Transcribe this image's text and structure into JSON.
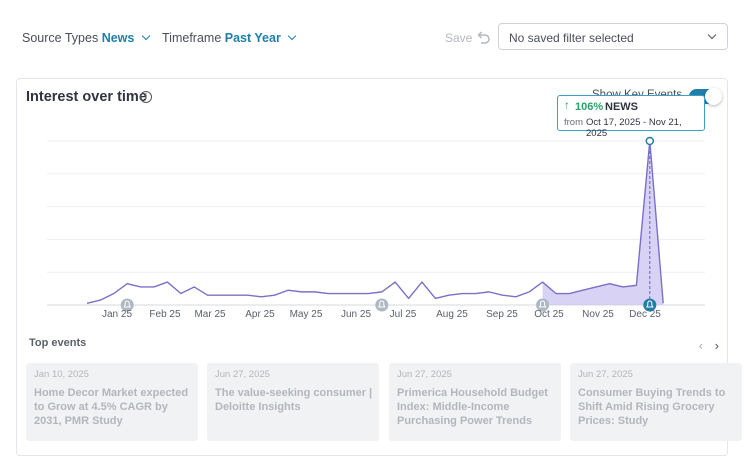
{
  "filters": {
    "source_label": "Source Types",
    "source_value": "News",
    "timeframe_label": "Timeframe",
    "timeframe_value": "Past Year",
    "save_label": "Save",
    "saved_filter_placeholder": "No saved filter selected"
  },
  "card": {
    "title": "Interest over time",
    "toggle_label": "Show Key Events",
    "toggle_on": true
  },
  "tooltip": {
    "change": "106%",
    "source": "NEWS",
    "from_label": "from",
    "range": "Oct 17, 2025 - Nov 21, 2025"
  },
  "chart_data": {
    "type": "line",
    "title": "",
    "xlabel": "",
    "ylabel": "",
    "x_ticks": [
      "Jan 25",
      "Feb 25",
      "Mar 25",
      "Apr 25",
      "May 25",
      "Jun 25",
      "Jul 25",
      "Aug 25",
      "Sep 25",
      "Oct 25",
      "Nov 25",
      "Dec 25"
    ],
    "ylim": [
      0,
      100
    ],
    "grid": true,
    "series": [
      {
        "values": [
          1,
          3,
          7,
          13,
          11,
          11,
          14,
          7,
          11,
          6,
          6,
          6,
          6,
          5,
          6,
          9,
          8,
          8,
          7,
          7,
          7,
          7,
          8,
          14,
          4,
          14,
          4,
          6,
          7,
          7,
          8,
          6,
          5,
          8,
          14,
          7,
          7,
          9,
          11,
          13,
          11,
          12,
          100,
          1
        ]
      }
    ],
    "highlight_range": [
      34,
      43
    ],
    "key_event_markers": [
      3,
      22,
      34,
      42
    ]
  },
  "top_events": {
    "title": "Top events",
    "items": [
      {
        "date": "Jan 10, 2025",
        "title": "Home Decor Market expected to Grow at 4.5% CAGR by 2031, PMR Study"
      },
      {
        "date": "Jun 27, 2025",
        "title": "The value-seeking consumer | Deloitte Insights"
      },
      {
        "date": "Jun 27, 2025",
        "title": "Primerica Household Budget Index: Middle-Income Purchasing Power Trends"
      },
      {
        "date": "Jun 27, 2025",
        "title": "Consumer Buying Trends to Shift Amid Rising Grocery Prices: Study"
      }
    ]
  },
  "colors": {
    "accent": "#1f7fa8",
    "line": "#7b70c8",
    "area": "#cbc4f0",
    "positive": "#29a36a"
  },
  "icons": {
    "undo": "undo-icon",
    "info": "info-icon",
    "marker": "bell-icon"
  }
}
